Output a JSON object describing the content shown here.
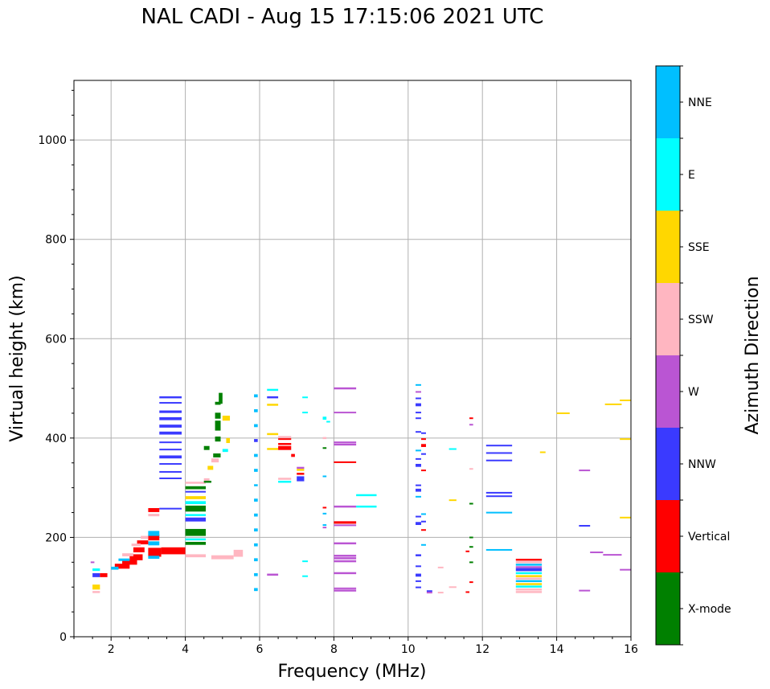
{
  "chart_data": {
    "type": "scatter",
    "title": "NAL CADI - Aug 15 17:15:06 2021 UTC",
    "xlabel": "Frequency (MHz)",
    "ylabel": "Virtual height (km)",
    "xlim": [
      1,
      16
    ],
    "ylim": [
      0,
      1120
    ],
    "xticks": [
      2,
      4,
      6,
      8,
      10,
      12,
      14,
      16
    ],
    "yticks": [
      0,
      200,
      400,
      600,
      800,
      1000
    ],
    "grid": true,
    "colorbar": {
      "label": "Azimuth Direction",
      "categories": [
        "X-mode",
        "Vertical",
        "NNW",
        "W",
        "SSW",
        "SSE",
        "E",
        "NNE"
      ],
      "colors": [
        "#008000",
        "#ff0000",
        "#3a3aff",
        "#ba55d3",
        "#ffb6c1",
        "#ffd700",
        "#00ffff",
        "#00bfff"
      ]
    },
    "segments_note": "each echo: [freq_start_MHz, freq_end_MHz, height_km, category_index, thickness_km]",
    "echoes": [
      [
        3.3,
        3.9,
        482,
        2,
        4
      ],
      [
        3.3,
        3.9,
        471,
        2,
        3
      ],
      [
        3.3,
        3.9,
        453,
        2,
        5
      ],
      [
        3.3,
        3.9,
        439,
        2,
        6
      ],
      [
        3.3,
        3.9,
        424,
        2,
        6
      ],
      [
        3.3,
        3.9,
        410,
        2,
        6
      ],
      [
        3.3,
        3.9,
        392,
        2,
        2
      ],
      [
        3.3,
        3.9,
        377,
        2,
        3
      ],
      [
        3.3,
        3.9,
        362,
        2,
        6
      ],
      [
        3.3,
        3.9,
        348,
        2,
        3
      ],
      [
        3.3,
        3.9,
        332,
        2,
        3
      ],
      [
        3.3,
        3.9,
        319,
        2,
        3
      ],
      [
        3.3,
        3.9,
        258,
        2,
        3
      ],
      [
        3.0,
        3.3,
        255,
        1,
        8
      ],
      [
        3.0,
        3.3,
        245,
        4,
        5
      ],
      [
        3.35,
        4.0,
        173,
        1,
        14
      ],
      [
        3.0,
        3.35,
        170,
        1,
        18
      ],
      [
        3.0,
        3.3,
        200,
        1,
        12
      ],
      [
        3.0,
        3.3,
        208,
        7,
        10
      ],
      [
        3.0,
        3.3,
        188,
        7,
        8
      ],
      [
        3.0,
        3.3,
        160,
        7,
        6
      ],
      [
        2.7,
        3.0,
        190,
        1,
        8
      ],
      [
        2.6,
        2.9,
        175,
        1,
        10
      ],
      [
        2.5,
        2.85,
        160,
        1,
        12
      ],
      [
        2.3,
        2.7,
        150,
        1,
        10
      ],
      [
        2.1,
        2.5,
        142,
        1,
        10
      ],
      [
        2.0,
        2.2,
        138,
        7,
        6
      ],
      [
        2.3,
        2.6,
        165,
        4,
        6
      ],
      [
        2.55,
        2.8,
        185,
        4,
        5
      ],
      [
        2.8,
        3.0,
        200,
        4,
        6
      ],
      [
        2.2,
        2.5,
        155,
        7,
        5
      ],
      [
        1.5,
        1.7,
        135,
        6,
        5
      ],
      [
        1.5,
        1.7,
        124,
        2,
        8
      ],
      [
        1.7,
        1.9,
        124,
        1,
        8
      ],
      [
        1.5,
        1.7,
        100,
        5,
        10
      ],
      [
        1.5,
        1.7,
        90,
        4,
        4
      ],
      [
        1.45,
        1.55,
        150,
        3,
        3
      ],
      [
        4.0,
        4.55,
        300,
        0,
        6
      ],
      [
        4.0,
        4.55,
        292,
        2,
        3
      ],
      [
        4.0,
        4.55,
        280,
        5,
        6
      ],
      [
        4.0,
        4.55,
        270,
        6,
        6
      ],
      [
        4.0,
        4.55,
        258,
        0,
        12
      ],
      [
        4.0,
        4.55,
        245,
        6,
        4
      ],
      [
        4.0,
        4.55,
        236,
        2,
        8
      ],
      [
        4.0,
        4.55,
        210,
        0,
        14
      ],
      [
        4.0,
        4.55,
        196,
        6,
        4
      ],
      [
        4.0,
        4.55,
        188,
        0,
        6
      ],
      [
        4.0,
        4.55,
        163,
        4,
        6
      ],
      [
        4.0,
        4.55,
        310,
        4,
        4
      ],
      [
        4.9,
        5.0,
        480,
        0,
        22
      ],
      [
        4.8,
        4.95,
        470,
        0,
        6
      ],
      [
        4.8,
        4.95,
        445,
        0,
        12
      ],
      [
        4.8,
        4.95,
        425,
        0,
        20
      ],
      [
        4.8,
        4.95,
        398,
        0,
        10
      ],
      [
        4.5,
        4.65,
        380,
        0,
        8
      ],
      [
        4.75,
        4.95,
        365,
        0,
        8
      ],
      [
        4.6,
        4.75,
        340,
        5,
        8
      ],
      [
        4.5,
        4.65,
        315,
        4,
        8
      ],
      [
        5.0,
        5.2,
        440,
        5,
        10
      ],
      [
        5.1,
        5.2,
        395,
        5,
        10
      ],
      [
        5.0,
        5.15,
        375,
        6,
        6
      ],
      [
        4.7,
        4.9,
        355,
        4,
        8
      ],
      [
        4.5,
        4.7,
        312,
        0,
        4
      ],
      [
        4.7,
        5.3,
        160,
        4,
        8
      ],
      [
        5.3,
        5.55,
        168,
        4,
        14
      ],
      [
        5.85,
        5.95,
        485,
        7,
        6
      ],
      [
        5.85,
        5.95,
        455,
        7,
        6
      ],
      [
        5.85,
        5.95,
        425,
        7,
        6
      ],
      [
        5.85,
        5.95,
        395,
        2,
        6
      ],
      [
        5.85,
        5.95,
        365,
        7,
        6
      ],
      [
        5.85,
        5.95,
        335,
        7,
        6
      ],
      [
        5.85,
        5.95,
        305,
        7,
        4
      ],
      [
        5.85,
        5.95,
        275,
        7,
        6
      ],
      [
        5.85,
        5.95,
        245,
        7,
        6
      ],
      [
        5.85,
        5.95,
        215,
        7,
        6
      ],
      [
        5.85,
        5.95,
        185,
        7,
        6
      ],
      [
        5.85,
        5.95,
        155,
        7,
        6
      ],
      [
        5.85,
        5.95,
        125,
        7,
        6
      ],
      [
        5.85,
        5.95,
        95,
        7,
        6
      ],
      [
        6.2,
        6.5,
        497,
        6,
        4
      ],
      [
        6.2,
        6.5,
        482,
        2,
        4
      ],
      [
        6.2,
        6.5,
        467,
        5,
        4
      ],
      [
        6.2,
        6.5,
        408,
        5,
        4
      ],
      [
        6.2,
        6.5,
        378,
        5,
        4
      ],
      [
        6.2,
        6.5,
        125,
        3,
        4
      ],
      [
        6.5,
        6.85,
        402,
        4,
        4
      ],
      [
        6.5,
        6.85,
        398,
        1,
        3
      ],
      [
        6.5,
        6.85,
        388,
        1,
        4
      ],
      [
        6.5,
        6.85,
        380,
        1,
        8
      ],
      [
        6.5,
        6.85,
        318,
        4,
        4
      ],
      [
        6.5,
        6.85,
        312,
        6,
        4
      ],
      [
        6.85,
        6.95,
        365,
        1,
        6
      ],
      [
        7.0,
        7.2,
        340,
        3,
        4
      ],
      [
        7.0,
        7.2,
        336,
        5,
        4
      ],
      [
        7.0,
        7.2,
        328,
        1,
        4
      ],
      [
        7.0,
        7.2,
        318,
        2,
        10
      ],
      [
        7.15,
        7.3,
        482,
        6,
        3
      ],
      [
        7.15,
        7.3,
        452,
        6,
        2
      ],
      [
        7.15,
        7.3,
        152,
        6,
        3
      ],
      [
        7.15,
        7.3,
        122,
        6,
        3
      ],
      [
        7.7,
        7.8,
        440,
        6,
        6
      ],
      [
        7.8,
        7.9,
        433,
        6,
        3
      ],
      [
        7.7,
        7.8,
        400,
        4,
        4
      ],
      [
        7.7,
        7.8,
        380,
        0,
        3
      ],
      [
        7.7,
        7.8,
        323,
        7,
        3
      ],
      [
        7.7,
        7.8,
        260,
        1,
        3
      ],
      [
        7.7,
        7.8,
        248,
        7,
        3
      ],
      [
        7.7,
        7.8,
        225,
        7,
        3
      ],
      [
        7.7,
        7.8,
        220,
        3,
        3
      ],
      [
        8.0,
        8.6,
        500,
        3,
        4
      ],
      [
        8.0,
        8.6,
        452,
        3,
        2
      ],
      [
        8.0,
        8.6,
        392,
        3,
        2
      ],
      [
        8.0,
        8.6,
        387,
        3,
        4
      ],
      [
        8.0,
        8.6,
        352,
        1,
        2
      ],
      [
        8.0,
        8.6,
        262,
        3,
        4
      ],
      [
        8.0,
        8.6,
        230,
        1,
        5
      ],
      [
        8.0,
        8.6,
        225,
        3,
        2
      ],
      [
        8.0,
        8.6,
        188,
        3,
        4
      ],
      [
        8.0,
        8.6,
        163,
        3,
        4
      ],
      [
        8.0,
        8.6,
        158,
        3,
        4
      ],
      [
        8.0,
        8.6,
        152,
        3,
        4
      ],
      [
        8.0,
        8.6,
        128,
        3,
        4
      ],
      [
        8.0,
        8.6,
        98,
        3,
        2
      ],
      [
        8.0,
        8.6,
        93,
        3,
        4
      ],
      [
        8.6,
        9.15,
        285,
        6,
        4
      ],
      [
        8.6,
        9.15,
        262,
        6,
        4
      ],
      [
        10.2,
        10.35,
        507,
        7,
        3
      ],
      [
        10.2,
        10.35,
        493,
        3,
        3
      ],
      [
        10.2,
        10.35,
        480,
        2,
        3
      ],
      [
        10.2,
        10.35,
        467,
        2,
        6
      ],
      [
        10.2,
        10.35,
        452,
        2,
        2
      ],
      [
        10.2,
        10.35,
        440,
        2,
        3
      ],
      [
        10.2,
        10.35,
        413,
        2,
        2
      ],
      [
        10.35,
        10.48,
        410,
        2,
        3
      ],
      [
        10.35,
        10.48,
        398,
        1,
        3
      ],
      [
        10.35,
        10.48,
        385,
        1,
        6
      ],
      [
        10.2,
        10.35,
        375,
        7,
        3
      ],
      [
        10.35,
        10.48,
        368,
        2,
        3
      ],
      [
        10.2,
        10.35,
        358,
        2,
        3
      ],
      [
        10.2,
        10.35,
        345,
        2,
        6
      ],
      [
        10.35,
        10.48,
        335,
        1,
        3
      ],
      [
        10.2,
        10.35,
        305,
        2,
        3
      ],
      [
        10.2,
        10.35,
        295,
        2,
        6
      ],
      [
        10.2,
        10.35,
        282,
        7,
        3
      ],
      [
        10.35,
        10.48,
        247,
        7,
        3
      ],
      [
        10.2,
        10.35,
        242,
        2,
        3
      ],
      [
        10.35,
        10.48,
        232,
        2,
        3
      ],
      [
        10.2,
        10.35,
        228,
        2,
        6
      ],
      [
        10.35,
        10.48,
        215,
        1,
        3
      ],
      [
        10.35,
        10.48,
        185,
        7,
        3
      ],
      [
        10.2,
        10.35,
        164,
        2,
        4
      ],
      [
        10.2,
        10.35,
        142,
        2,
        3
      ],
      [
        10.2,
        10.35,
        124,
        2,
        6
      ],
      [
        10.2,
        10.35,
        112,
        2,
        3
      ],
      [
        10.2,
        10.35,
        100,
        2,
        2
      ],
      [
        10.5,
        10.65,
        92,
        2,
        3
      ],
      [
        10.5,
        10.65,
        89,
        3,
        3
      ],
      [
        10.8,
        10.95,
        140,
        4,
        2
      ],
      [
        10.8,
        10.95,
        89,
        4,
        3
      ],
      [
        11.1,
        11.3,
        378,
        6,
        3
      ],
      [
        11.1,
        11.3,
        275,
        5,
        3
      ],
      [
        11.1,
        11.3,
        100,
        4,
        3
      ],
      [
        11.55,
        11.65,
        172,
        1,
        3
      ],
      [
        11.55,
        11.65,
        90,
        1,
        3
      ],
      [
        11.65,
        11.75,
        440,
        1,
        3
      ],
      [
        11.65,
        11.75,
        427,
        3,
        3
      ],
      [
        11.65,
        11.75,
        338,
        4,
        3
      ],
      [
        11.65,
        11.75,
        268,
        0,
        3
      ],
      [
        11.65,
        11.75,
        200,
        0,
        3
      ],
      [
        11.65,
        11.75,
        181,
        0,
        3
      ],
      [
        11.65,
        11.75,
        150,
        0,
        3
      ],
      [
        11.65,
        11.75,
        110,
        1,
        3
      ],
      [
        12.1,
        12.8,
        385,
        2,
        3
      ],
      [
        12.1,
        12.8,
        370,
        2,
        3
      ],
      [
        12.1,
        12.8,
        355,
        2,
        3
      ],
      [
        12.1,
        12.8,
        290,
        2,
        3
      ],
      [
        12.1,
        12.8,
        283,
        2,
        3
      ],
      [
        12.1,
        12.8,
        250,
        7,
        3
      ],
      [
        12.1,
        12.8,
        175,
        7,
        3
      ],
      [
        12.9,
        13.6,
        155,
        1,
        4
      ],
      [
        12.9,
        13.6,
        150,
        4,
        4
      ],
      [
        12.9,
        13.6,
        145,
        7,
        4
      ],
      [
        12.9,
        13.6,
        140,
        3,
        4
      ],
      [
        12.9,
        13.6,
        135,
        2,
        6
      ],
      [
        12.9,
        13.6,
        128,
        6,
        4
      ],
      [
        12.9,
        13.6,
        122,
        5,
        4
      ],
      [
        12.9,
        13.6,
        117,
        4,
        4
      ],
      [
        12.9,
        13.6,
        112,
        7,
        4
      ],
      [
        12.9,
        13.6,
        106,
        5,
        4
      ],
      [
        12.9,
        13.6,
        101,
        6,
        4
      ],
      [
        12.9,
        13.6,
        95,
        4,
        4
      ],
      [
        12.9,
        13.6,
        90,
        4,
        4
      ],
      [
        13.55,
        13.7,
        372,
        5,
        2
      ],
      [
        14.0,
        14.35,
        450,
        5,
        3
      ],
      [
        15.3,
        15.75,
        468,
        5,
        3
      ],
      [
        15.7,
        16.0,
        476,
        5,
        3
      ],
      [
        15.7,
        16.0,
        398,
        5,
        3
      ],
      [
        15.7,
        16.0,
        240,
        5,
        3
      ],
      [
        14.6,
        14.9,
        335,
        3,
        3
      ],
      [
        14.6,
        14.9,
        224,
        2,
        2
      ],
      [
        14.6,
        14.9,
        93,
        3,
        3
      ],
      [
        14.9,
        15.25,
        170,
        3,
        3
      ],
      [
        15.25,
        15.75,
        165,
        3,
        3
      ],
      [
        15.7,
        16.0,
        135,
        3,
        3
      ]
    ]
  }
}
